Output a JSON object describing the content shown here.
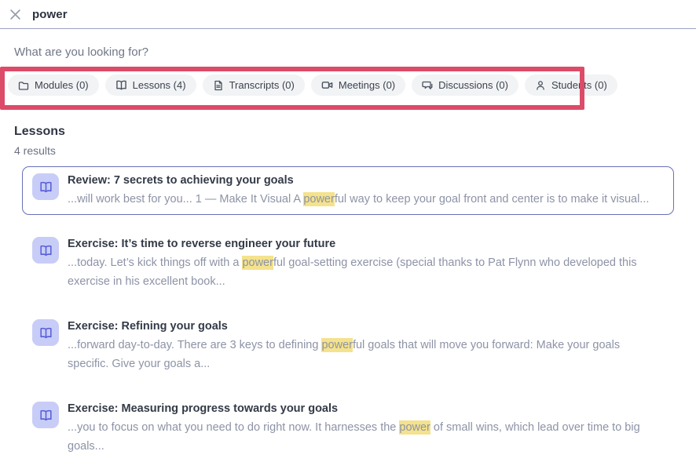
{
  "header": {
    "query": "power",
    "close_icon": "close-icon"
  },
  "prompt": "What are you looking for?",
  "filters": {
    "chips": [
      {
        "label": "Modules (0)",
        "icon": "folder-icon"
      },
      {
        "label": "Lessons (4)",
        "icon": "book-open-icon"
      },
      {
        "label": "Transcripts (0)",
        "icon": "document-icon"
      },
      {
        "label": "Meetings (0)",
        "icon": "video-icon"
      },
      {
        "label": "Discussions (0)",
        "icon": "chat-icon"
      },
      {
        "label": "Students (0)",
        "icon": "person-icon"
      }
    ]
  },
  "section": {
    "title": "Lessons",
    "result_count": "4 results"
  },
  "results": [
    {
      "title": "Review: 7 secrets to achieving your goals",
      "selected": true,
      "icon": "book-open-icon",
      "snippet": [
        {
          "text": "...will work best for you... 1 — Make It Visual A "
        },
        {
          "text": "power",
          "highlight": true
        },
        {
          "text": "ful way to keep your goal front and center is to make it visual..."
        }
      ]
    },
    {
      "title": "Exercise: It’s time to reverse engineer your future",
      "selected": false,
      "icon": "book-open-icon",
      "snippet": [
        {
          "text": "...today. Let’s kick things off with a "
        },
        {
          "text": "power",
          "highlight": true
        },
        {
          "text": "ful goal-setting exercise (special thanks to Pat Flynn who developed this exercise in his excellent book..."
        }
      ]
    },
    {
      "title": "Exercise: Refining your goals",
      "selected": false,
      "icon": "book-open-icon",
      "snippet": [
        {
          "text": "...forward day-to-day. There are 3 keys to defining "
        },
        {
          "text": "power",
          "highlight": true
        },
        {
          "text": "ful goals that will move you forward: Make your goals specific. Give your goals a..."
        }
      ]
    },
    {
      "title": "Exercise: Measuring progress towards your goals",
      "selected": false,
      "icon": "book-open-icon",
      "snippet": [
        {
          "text": "...you to focus on what you need to do right now. It harnesses the "
        },
        {
          "text": "power",
          "highlight": true
        },
        {
          "text": " of small wins, which lead over time to big goals..."
        }
      ]
    }
  ],
  "colors": {
    "annotation": "#dc4b68",
    "highlight": "#f4e28c",
    "accent": "#565dd8",
    "selected_border": "#6a70b8",
    "chip_background": "#f1f3f5"
  }
}
